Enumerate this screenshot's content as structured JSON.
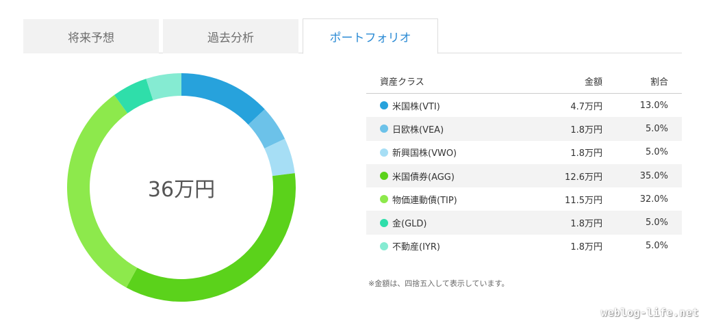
{
  "tabs": [
    {
      "label": "将来予想",
      "active": false
    },
    {
      "label": "過去分析",
      "active": false
    },
    {
      "label": "ポートフォリオ",
      "active": true
    }
  ],
  "donut": {
    "total_label": "36万円"
  },
  "table": {
    "headers": {
      "asset_class": "資産クラス",
      "amount": "金額",
      "ratio": "割合"
    },
    "rows": [
      {
        "name": "米国株(VTI)",
        "amount": "4.7万円",
        "ratio": "13.0%",
        "percent": 13,
        "color": "#27a2dc"
      },
      {
        "name": "日欧株(VEA)",
        "amount": "1.8万円",
        "ratio": "5.0%",
        "percent": 5,
        "color": "#6cc2e9"
      },
      {
        "name": "新興国株(VWO)",
        "amount": "1.8万円",
        "ratio": "5.0%",
        "percent": 5,
        "color": "#a6def5"
      },
      {
        "name": "米国債券(AGG)",
        "amount": "12.6万円",
        "ratio": "35.0%",
        "percent": 35,
        "color": "#5bd21b"
      },
      {
        "name": "物価連動債(TIP)",
        "amount": "11.5万円",
        "ratio": "32.0%",
        "percent": 32,
        "color": "#8de94c"
      },
      {
        "name": "金(GLD)",
        "amount": "1.8万円",
        "ratio": "5.0%",
        "percent": 5,
        "color": "#2fdeaa"
      },
      {
        "name": "不動産(IYR)",
        "amount": "1.8万円",
        "ratio": "5.0%",
        "percent": 5,
        "color": "#85ebd2"
      }
    ]
  },
  "footnote": "※金額は、四捨五入して表示しています。",
  "watermark": "weblog-life.net"
}
